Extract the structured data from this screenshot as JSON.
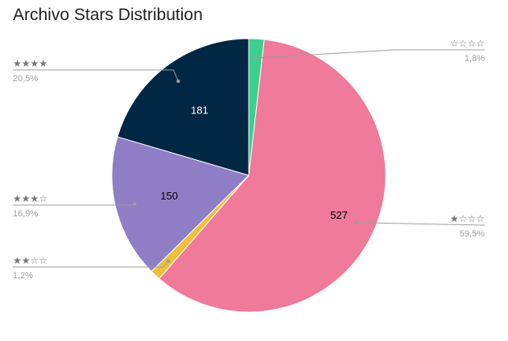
{
  "chart_data": {
    "type": "pie",
    "title": "Archivo Stars Distribution",
    "slices": [
      {
        "label": "☆☆☆☆",
        "value": 16,
        "percent_label": "1,8%",
        "value_label": "",
        "color": "#3ccf8e",
        "text_color": "#ffffff"
      },
      {
        "label": "★☆☆☆",
        "value": 527,
        "percent_label": "59,5%",
        "value_label": "527",
        "color": "#ef7a9a",
        "text_color": "#000000"
      },
      {
        "label": "★★☆☆",
        "value": 11,
        "percent_label": "1,2%",
        "value_label": "",
        "color": "#ecc13b",
        "text_color": "#000000"
      },
      {
        "label": "★★★☆",
        "value": 150,
        "percent_label": "16,9%",
        "value_label": "150",
        "color": "#8f7ec6",
        "text_color": "#000000"
      },
      {
        "label": "★★★★",
        "value": 181,
        "percent_label": "20,5%",
        "value_label": "181",
        "color": "#022744",
        "text_color": "#ffffff"
      }
    ]
  }
}
